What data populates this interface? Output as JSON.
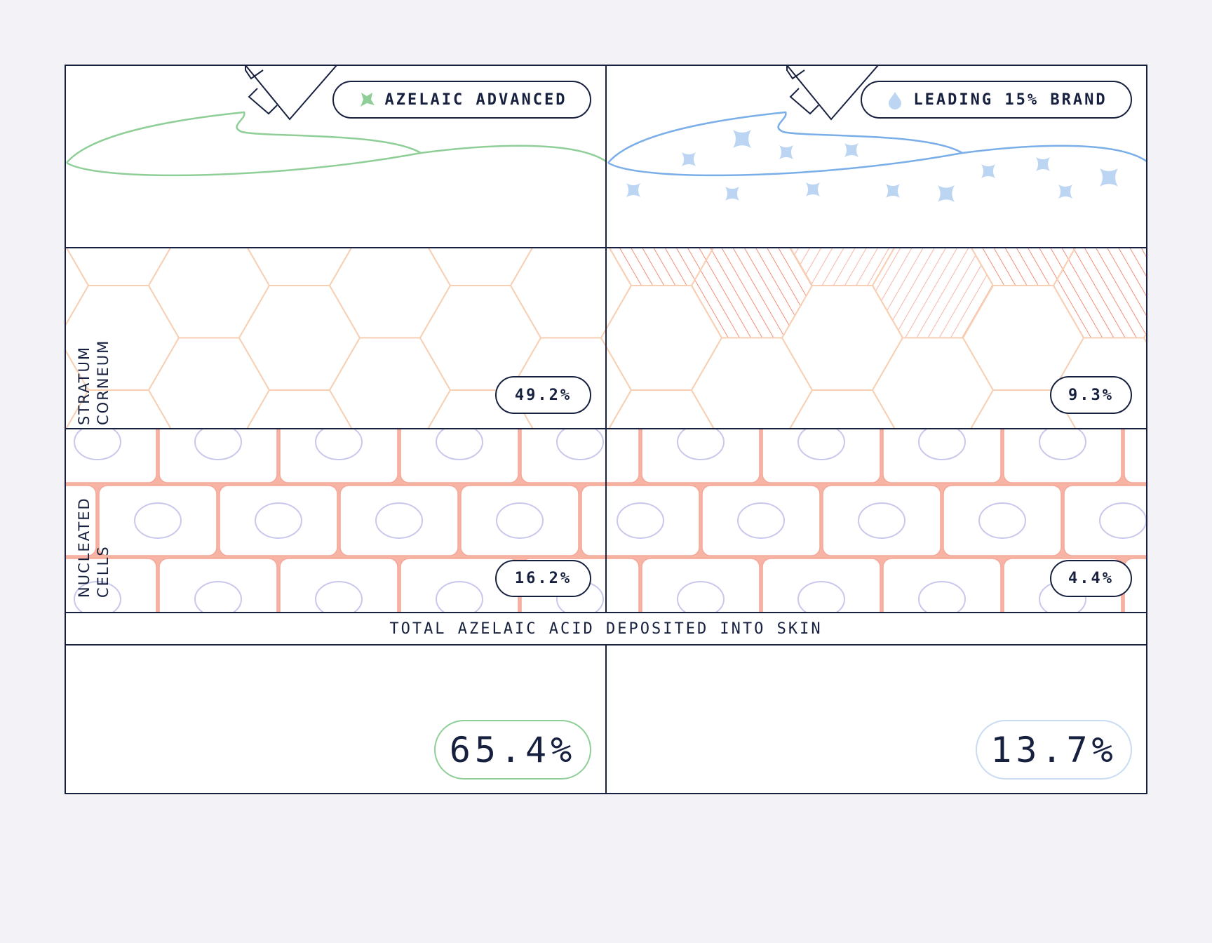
{
  "products": [
    {
      "name": "AZELAIC ADVANCED",
      "stratum_corneum": "49.2%",
      "nucleated_cells": "16.2%",
      "total": "65.4%"
    },
    {
      "name": "LEADING 15% BRAND",
      "stratum_corneum": "9.3%",
      "nucleated_cells": "4.4%",
      "total": "13.7%"
    }
  ],
  "layers": [
    "STRATUM CORNEUM",
    "NUCLEATED CELLS"
  ],
  "total_label": "TOTAL AZELAIC ACID DEPOSITED INTO SKIN"
}
